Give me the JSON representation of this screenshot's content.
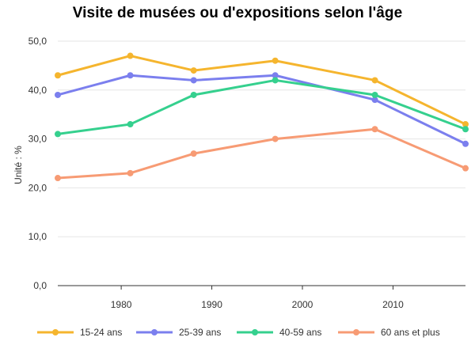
{
  "chart_data": {
    "type": "line",
    "title": "Visite de musées ou d'expositions selon l'âge",
    "xlabel": "",
    "ylabel": "Unité : %",
    "x": [
      1973,
      1981,
      1988,
      1997,
      2008,
      2018
    ],
    "xlim": [
      1973,
      2018
    ],
    "x_ticks": [
      1980,
      1990,
      2000,
      2010
    ],
    "x_tick_labels": [
      "1980",
      "1990",
      "2000",
      "2010"
    ],
    "ylim": [
      0,
      50
    ],
    "y_ticks": [
      0,
      10,
      20,
      30,
      40,
      50
    ],
    "y_tick_labels": [
      "0,0",
      "10,0",
      "20,0",
      "30,0",
      "40,0",
      "50,0"
    ],
    "grid": "horizontal",
    "legend_position": "bottom",
    "series": [
      {
        "name": "15-24 ans",
        "color": "#F5B52E",
        "values": [
          43,
          47,
          44,
          46,
          42,
          33
        ]
      },
      {
        "name": "25-39 ans",
        "color": "#7B7FEE",
        "values": [
          39,
          43,
          42,
          43,
          38,
          29
        ]
      },
      {
        "name": "40-59 ans",
        "color": "#35D08E",
        "values": [
          31,
          33,
          39,
          42,
          39,
          32
        ]
      },
      {
        "name": "60 ans et plus",
        "color": "#F79B74",
        "values": [
          22,
          23,
          27,
          30,
          32,
          24
        ]
      }
    ]
  }
}
